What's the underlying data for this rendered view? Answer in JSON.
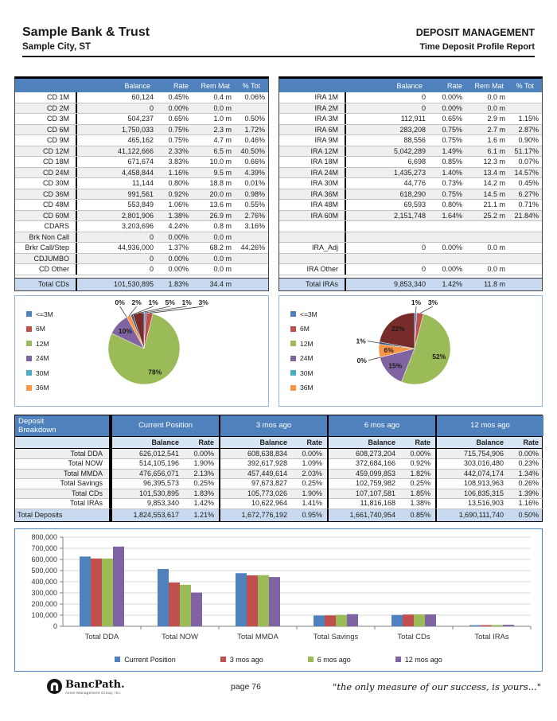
{
  "header": {
    "bank_name": "Sample Bank & Trust",
    "city": "Sample City, ST",
    "department": "DEPOSIT MANAGEMENT",
    "report_title": "Time Deposit Profile Report"
  },
  "columns": [
    "Balance",
    "Rate",
    "Rem Mat",
    "% Tot"
  ],
  "cd_table": {
    "rows": [
      [
        "CD 1M",
        "60,124",
        "0.45%",
        "0.4 m",
        "0.06%"
      ],
      [
        "CD 2M",
        "0",
        "0.00%",
        "0.0 m",
        ""
      ],
      [
        "CD 3M",
        "504,237",
        "0.65%",
        "1.0 m",
        "0.50%"
      ],
      [
        "CD 6M",
        "1,750,033",
        "0.75%",
        "2.3 m",
        "1.72%"
      ],
      [
        "CD 9M",
        "465,162",
        "0.75%",
        "4.7 m",
        "0.46%"
      ],
      [
        "CD 12M",
        "41,122,666",
        "2.33%",
        "6.5 m",
        "40.50%"
      ],
      [
        "CD 18M",
        "671,674",
        "3.83%",
        "10.0 m",
        "0.66%"
      ],
      [
        "CD 24M",
        "4,458,844",
        "1.16%",
        "9.5 m",
        "4.39%"
      ],
      [
        "CD 30M",
        "11,144",
        "0.80%",
        "18.8 m",
        "0.01%"
      ],
      [
        "CD 36M",
        "991,561",
        "0.92%",
        "20.0 m",
        "0.98%"
      ],
      [
        "CD 48M",
        "553,849",
        "1.06%",
        "13.6 m",
        "0.55%"
      ],
      [
        "CD 60M",
        "2,801,906",
        "1.38%",
        "26.9 m",
        "2.76%"
      ],
      [
        "CDARS",
        "3,203,696",
        "4.24%",
        "0.8 m",
        "3.16%"
      ],
      [
        "Brk Non Call",
        "0",
        "0.00%",
        "0.0 m",
        ""
      ],
      [
        "Brkr Call/Step",
        "44,936,000",
        "1.37%",
        "68.2 m",
        "44.26%"
      ],
      [
        "CDJUMBO",
        "0",
        "0.00%",
        "0.0 m",
        ""
      ],
      [
        "CD Other",
        "0",
        "0.00%",
        "0.0 m",
        ""
      ]
    ],
    "total": [
      "Total CDs",
      "101,530,895",
      "1.83%",
      "34.4 m",
      ""
    ]
  },
  "ira_table": {
    "rows": [
      [
        "IRA 1M",
        "0",
        "0.00%",
        "0.0 m",
        ""
      ],
      [
        "IRA 2M",
        "0",
        "0.00%",
        "0.0 m",
        ""
      ],
      [
        "IRA 3M",
        "112,911",
        "0.65%",
        "2.9 m",
        "1.15%"
      ],
      [
        "IRA 6M",
        "283,208",
        "0.75%",
        "2.7 m",
        "2.87%"
      ],
      [
        "IRA 9M",
        "88,556",
        "0.75%",
        "1.6 m",
        "0.90%"
      ],
      [
        "IRA 12M",
        "5,042,289",
        "1.49%",
        "6.1 m",
        "51.17%"
      ],
      [
        "IRA 18M",
        "6,698",
        "0.85%",
        "12.3 m",
        "0.07%"
      ],
      [
        "IRA 24M",
        "1,435,273",
        "1.40%",
        "13.4 m",
        "14.57%"
      ],
      [
        "IRA 30M",
        "44,776",
        "0.73%",
        "14.2 m",
        "0.45%"
      ],
      [
        "IRA 36M",
        "618,290",
        "0.75%",
        "14.5 m",
        "6.27%"
      ],
      [
        "IRA 48M",
        "69,593",
        "0.80%",
        "21.1 m",
        "0.71%"
      ],
      [
        "IRA 60M",
        "2,151,748",
        "1.64%",
        "25.2 m",
        "21.84%"
      ],
      [
        "",
        "",
        "",
        "",
        ""
      ],
      [
        "",
        "",
        "",
        "",
        ""
      ],
      [
        "IRA_Adj",
        "0",
        "0.00%",
        "0.0 m",
        ""
      ],
      [
        "",
        "",
        "",
        "",
        ""
      ],
      [
        "IRA Other",
        "0",
        "0.00%",
        "0.0 m",
        ""
      ]
    ],
    "total": [
      "Total IRAs",
      "9,853,340",
      "1.42%",
      "11.8 m",
      ""
    ]
  },
  "breakdown": {
    "title_line1": "Deposit",
    "title_line2": "Breakdown",
    "groups": [
      "Current Position",
      "3 mos ago",
      "6 mos ago",
      "12 mos ago"
    ],
    "sub_columns": [
      "Balance",
      "Rate"
    ],
    "rows": [
      {
        "label": "Total DDA",
        "values": [
          [
            "626,012,541",
            "0.00%"
          ],
          [
            "608,638,834",
            "0.00%"
          ],
          [
            "608,273,204",
            "0.00%"
          ],
          [
            "715,754,906",
            "0.00%"
          ]
        ]
      },
      {
        "label": "Total NOW",
        "values": [
          [
            "514,105,196",
            "1.90%"
          ],
          [
            "392,617,928",
            "1.09%"
          ],
          [
            "372,684,166",
            "0.92%"
          ],
          [
            "303,016,480",
            "0.23%"
          ]
        ]
      },
      {
        "label": "Total MMDA",
        "values": [
          [
            "476,656,071",
            "2.13%"
          ],
          [
            "457,449,614",
            "2.03%"
          ],
          [
            "459,099,853",
            "1.82%"
          ],
          [
            "442,074,174",
            "1.34%"
          ]
        ]
      },
      {
        "label": "Total Savings",
        "values": [
          [
            "96,395,573",
            "0.25%"
          ],
          [
            "97,673,827",
            "0.25%"
          ],
          [
            "102,759,982",
            "0.25%"
          ],
          [
            "108,913,963",
            "0.26%"
          ]
        ]
      },
      {
        "label": "Total CDs",
        "values": [
          [
            "101,530,895",
            "1.83%"
          ],
          [
            "105,773,026",
            "1.90%"
          ],
          [
            "107,107,581",
            "1.85%"
          ],
          [
            "106,835,315",
            "1.39%"
          ]
        ]
      },
      {
        "label": "Total IRAs",
        "values": [
          [
            "9,853,340",
            "1.42%"
          ],
          [
            "10,622,964",
            "1.41%"
          ],
          [
            "11,816,168",
            "1.38%"
          ],
          [
            "13,516,903",
            "1.16%"
          ]
        ]
      }
    ],
    "total": {
      "label": "Total Deposits",
      "values": [
        [
          "1,824,553,617",
          "1.21%"
        ],
        [
          "1,672,776,192",
          "0.95%"
        ],
        [
          "1,661,740,954",
          "0.85%"
        ],
        [
          "1,690,111,740",
          "0.50%"
        ]
      ]
    }
  },
  "chart_data": [
    {
      "type": "pie",
      "name": "cd-maturity-mix",
      "legend": [
        "<=3M",
        "6M",
        "12M",
        "24M",
        "30M",
        "36M"
      ],
      "slices": [
        {
          "name": "<=3M",
          "pct": 1,
          "color": "#4F81BD"
        },
        {
          "name": "6M",
          "pct": 3,
          "color": "#C0504D"
        },
        {
          "name": "12M",
          "pct": 78,
          "color": "#9BBB59"
        },
        {
          "name": "24M",
          "pct": 10,
          "color": "#8064A2"
        },
        {
          "name": "30M",
          "pct": 0,
          "color": "#4BACC6"
        },
        {
          "name": "36M",
          "pct": 2,
          "color": "#F79646"
        },
        {
          "name": "48M",
          "pct": 1,
          "color": "#2C4D75"
        },
        {
          "name": "60M",
          "pct": 5,
          "color": "#772C2A"
        }
      ]
    },
    {
      "type": "pie",
      "name": "ira-maturity-mix",
      "legend": [
        "<=3M",
        "6M",
        "12M",
        "24M",
        "30M",
        "36M"
      ],
      "slices": [
        {
          "name": "<=3M",
          "pct": 1,
          "color": "#4F81BD"
        },
        {
          "name": "6M",
          "pct": 3,
          "color": "#C0504D"
        },
        {
          "name": "12M",
          "pct": 52,
          "color": "#9BBB59"
        },
        {
          "name": "24M",
          "pct": 15,
          "color": "#8064A2"
        },
        {
          "name": "30M",
          "pct": 0,
          "color": "#4BACC6"
        },
        {
          "name": "36M",
          "pct": 6,
          "color": "#F79646"
        },
        {
          "name": "48M",
          "pct": 1,
          "color": "#2C4D75"
        },
        {
          "name": "60M",
          "pct": 22,
          "color": "#772C2A"
        }
      ]
    },
    {
      "type": "bar",
      "name": "deposit-trend",
      "categories": [
        "Total DDA",
        "Total NOW",
        "Total MMDA",
        "Total Savings",
        "Total CDs",
        "Total IRAs"
      ],
      "series": [
        {
          "name": "Current Position",
          "color": "#4F81BD",
          "values": [
            626013,
            514105,
            476656,
            96396,
            101531,
            9853
          ]
        },
        {
          "name": "3 mos ago",
          "color": "#C0504D",
          "values": [
            608639,
            392618,
            457450,
            97674,
            105773,
            10623
          ]
        },
        {
          "name": "6 mos ago",
          "color": "#9BBB59",
          "values": [
            608273,
            372684,
            459100,
            102760,
            107108,
            11816
          ]
        },
        {
          "name": "12 mos ago",
          "color": "#8064A2",
          "values": [
            715755,
            303016,
            442074,
            108914,
            106835,
            13517
          ]
        }
      ],
      "ylim": [
        0,
        800000
      ],
      "ytick": 100000,
      "grid": true,
      "legend_position": "bottom"
    }
  ],
  "colors": {
    "accent_blue": "#4F81BD",
    "header_band": "#4F81BD",
    "total_row": "#c9daf0",
    "subheader_row": "#d7e4f1",
    "pie_border": "#95B3D7"
  },
  "footer": {
    "logo_name": "BancPath.",
    "logo_sub": "Asset Management Group, Inc.",
    "page_label": "page 76",
    "quote": "\"the only measure of our success, is yours...\""
  }
}
